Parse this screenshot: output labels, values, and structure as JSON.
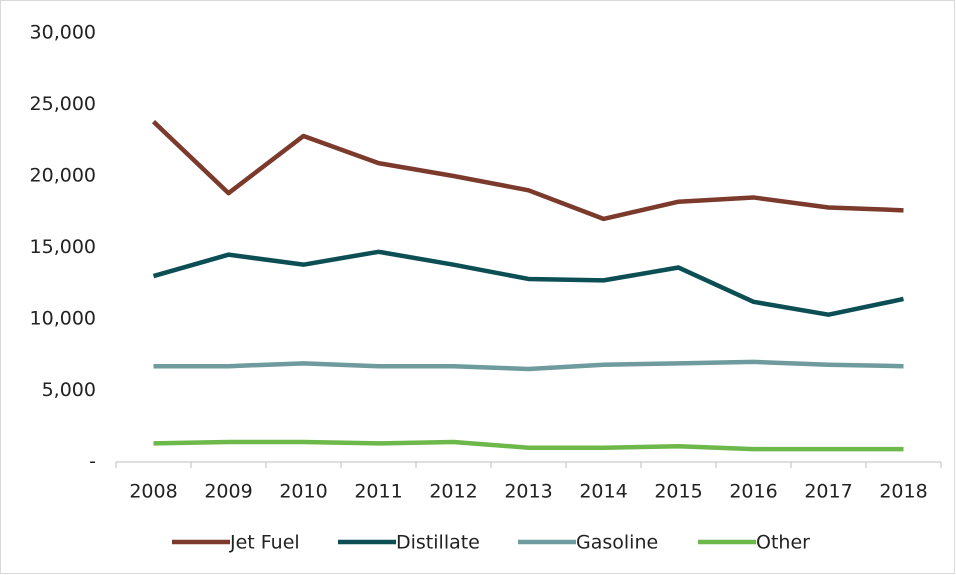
{
  "chart_data": {
    "type": "line",
    "categories": [
      "2008",
      "2009",
      "2010",
      "2011",
      "2012",
      "2013",
      "2014",
      "2015",
      "2016",
      "2017",
      "2018"
    ],
    "series": [
      {
        "name": "Jet Fuel",
        "color": "#7b3a2b",
        "values": [
          23800,
          18800,
          22800,
          20900,
          20000,
          19000,
          17000,
          18200,
          18500,
          17800,
          17600
        ]
      },
      {
        "name": "Distillate",
        "color": "#0b4f55",
        "values": [
          13000,
          14500,
          13800,
          14700,
          13800,
          12800,
          12700,
          13600,
          11200,
          10300,
          11400
        ]
      },
      {
        "name": "Gasoline",
        "color": "#6f9a9e",
        "values": [
          6700,
          6700,
          6900,
          6700,
          6700,
          6500,
          6800,
          6900,
          7000,
          6800,
          6700
        ]
      },
      {
        "name": "Other",
        "color": "#6cb84a",
        "values": [
          1300,
          1400,
          1400,
          1300,
          1400,
          1000,
          1000,
          1100,
          900,
          900,
          900
        ]
      }
    ],
    "ylim": [
      0,
      30000
    ],
    "yticks": [
      {
        "value": 0,
        "label": "-"
      },
      {
        "value": 5000,
        "label": "5,000"
      },
      {
        "value": 10000,
        "label": "10,000"
      },
      {
        "value": 15000,
        "label": "15,000"
      },
      {
        "value": 20000,
        "label": "20,000"
      },
      {
        "value": 25000,
        "label": "25,000"
      },
      {
        "value": 30000,
        "label": "30,000"
      }
    ],
    "grid": false,
    "legend": "bottom"
  }
}
